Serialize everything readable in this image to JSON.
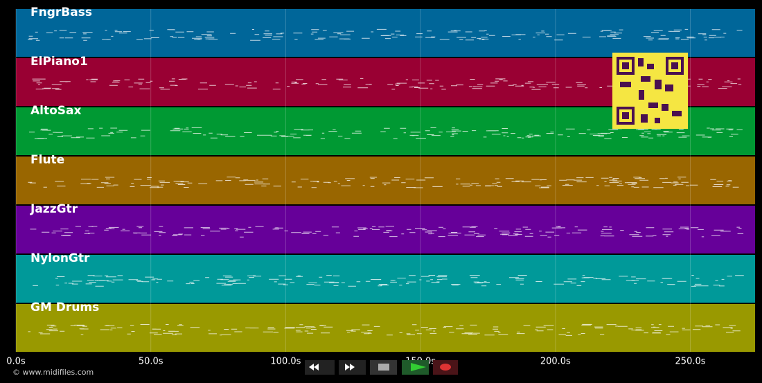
{
  "tracks": [
    {
      "name": "FngrBass",
      "color": "#006699"
    },
    {
      "name": "ElPiano1",
      "color": "#990033"
    },
    {
      "name": "AltoSax",
      "color": "#009933"
    },
    {
      "name": "Flute",
      "color": "#996600"
    },
    {
      "name": "JazzGtr",
      "color": "#660099"
    },
    {
      "name": "NylonGtr",
      "color": "#009999"
    },
    {
      "name": "GM Drums",
      "color": "#999900"
    }
  ],
  "timeline": {
    "xlim": [
      0,
      274
    ],
    "ticks": [
      {
        "value": 0,
        "label": "0.0s"
      },
      {
        "value": 50,
        "label": "50.0s"
      },
      {
        "value": 100,
        "label": "100.0s"
      },
      {
        "value": 150,
        "label": "150.0s"
      },
      {
        "value": 200,
        "label": "200.0s"
      },
      {
        "value": 250,
        "label": "250.0s"
      }
    ]
  },
  "copyright": "© www.midifiles.com"
}
